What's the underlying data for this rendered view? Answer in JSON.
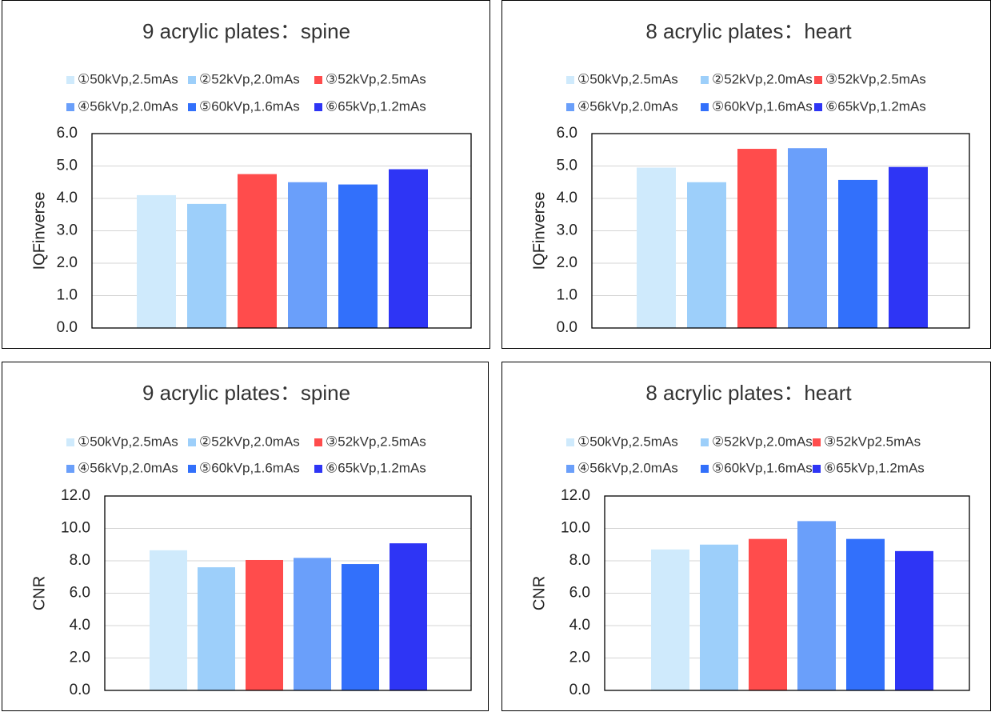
{
  "chart_data": [
    {
      "type": "bar",
      "title": "9 acrylic plates：spine",
      "ylabel": "IQFinverse",
      "xlabel": "",
      "ylim": [
        0,
        6
      ],
      "yticks": [
        "0.0",
        "1.0",
        "2.0",
        "3.0",
        "4.0",
        "5.0",
        "6.0"
      ],
      "series": [
        {
          "name": "①50kVp,2.5mAs",
          "value": 4.1,
          "color": "#cfeafc"
        },
        {
          "name": "②52kVp,2.0mAs",
          "value": 3.83,
          "color": "#9dcffa"
        },
        {
          "name": "③52kVp,2.5mAs",
          "value": 4.75,
          "color": "#ff4c4c"
        },
        {
          "name": "④56kVp,2.0mAs",
          "value": 4.5,
          "color": "#6a9ffa"
        },
        {
          "name": "⑤60kVp,1.6mAs",
          "value": 4.43,
          "color": "#3270fb"
        },
        {
          "name": "⑥65kVp,1.2mAs",
          "value": 4.9,
          "color": "#2e35f5"
        }
      ]
    },
    {
      "type": "bar",
      "title": "8 acrylic plates：heart",
      "ylabel": "IQFinverse",
      "xlabel": "",
      "ylim": [
        0,
        6
      ],
      "yticks": [
        "0.0",
        "1.0",
        "2.0",
        "3.0",
        "4.0",
        "5.0",
        "6.0"
      ],
      "series": [
        {
          "name": "①50kVp,2.5mAs",
          "value": 4.95,
          "color": "#cfeafc"
        },
        {
          "name": "②52kVp,2.0mAs",
          "value": 4.5,
          "color": "#9dcffa"
        },
        {
          "name": "③52kVp,2.5mAs",
          "value": 5.53,
          "color": "#ff4c4c"
        },
        {
          "name": "④56kVp,2.0mAs",
          "value": 5.55,
          "color": "#6a9ffa"
        },
        {
          "name": "⑤60kVp,1.6mAs",
          "value": 4.57,
          "color": "#3270fb"
        },
        {
          "name": "⑥65kVp,1.2mAs",
          "value": 4.97,
          "color": "#2e35f5"
        }
      ]
    },
    {
      "type": "bar",
      "title": "9 acrylic plates：spine",
      "ylabel": "CNR",
      "xlabel": "",
      "ylim": [
        0,
        12
      ],
      "yticks": [
        "0.0",
        "2.0",
        "4.0",
        "6.0",
        "8.0",
        "10.0",
        "12.0"
      ],
      "series": [
        {
          "name": "①50kVp,2.5mAs",
          "value": 8.65,
          "color": "#cfeafc"
        },
        {
          "name": "②52kVp,2.0mAs",
          "value": 7.6,
          "color": "#9dcffa"
        },
        {
          "name": "③52kVp,2.5mAs",
          "value": 8.05,
          "color": "#ff4c4c"
        },
        {
          "name": "④56kVp,2.0mAs",
          "value": 8.18,
          "color": "#6a9ffa"
        },
        {
          "name": "⑤60kVp,1.6mAs",
          "value": 7.8,
          "color": "#3270fb"
        },
        {
          "name": "⑥65kVp,1.2mAs",
          "value": 9.08,
          "color": "#2e35f5"
        }
      ]
    },
    {
      "type": "bar",
      "title": "8 acrylic plates：heart",
      "ylabel": "CNR",
      "xlabel": "",
      "ylim": [
        0,
        12
      ],
      "yticks": [
        "0.0",
        "2.0",
        "4.0",
        "6.0",
        "8.0",
        "10.0",
        "12.0"
      ],
      "series": [
        {
          "name": "①50kVp,2.5mAs",
          "value": 8.7,
          "color": "#cfeafc"
        },
        {
          "name": "②52kVp,2.0mAs",
          "value": 9.0,
          "color": "#9dcffa"
        },
        {
          "name": "③52kVp2.5mAs",
          "value": 9.35,
          "color": "#ff4c4c"
        },
        {
          "name": "④56kVp,2.0mAs",
          "value": 10.45,
          "color": "#6a9ffa"
        },
        {
          "name": "⑤60kVp,1.6mAs",
          "value": 9.35,
          "color": "#3270fb"
        },
        {
          "name": "⑥65kVp,1.2mAs",
          "value": 8.6,
          "color": "#2e35f5"
        }
      ]
    }
  ]
}
